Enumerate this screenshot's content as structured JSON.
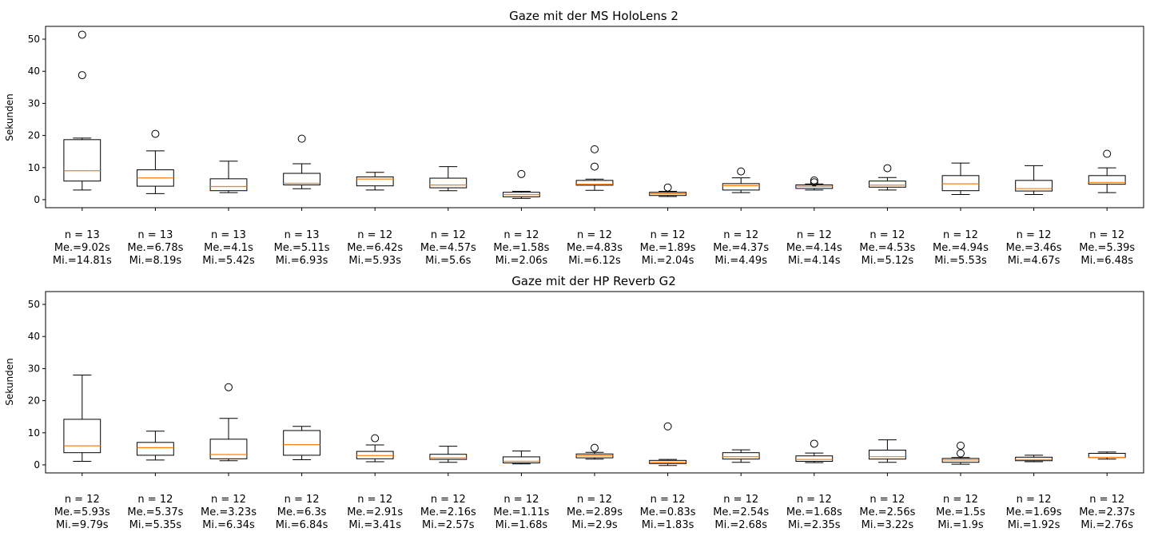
{
  "chart_data": [
    {
      "type": "boxplot",
      "title": "Gaze mit der MS HoloLens 2",
      "ylabel": "Sekunden",
      "xlabel": "",
      "ylim": [
        -2.5,
        54
      ],
      "yticks": [
        0,
        10,
        20,
        30,
        40,
        50
      ],
      "grid": false,
      "median_color": "#ff7f0e",
      "categories": [
        [
          "n = 13",
          "Me.=9.02s",
          "Mi.=14.81s"
        ],
        [
          "n = 13",
          "Me.=6.78s",
          "Mi.=8.19s"
        ],
        [
          "n = 13",
          "Me.=4.1s",
          "Mi.=5.42s"
        ],
        [
          "n = 13",
          "Me.=5.11s",
          "Mi.=6.93s"
        ],
        [
          "n = 12",
          "Me.=6.42s",
          "Mi.=5.93s"
        ],
        [
          "n = 12",
          "Me.=4.57s",
          "Mi.=5.6s"
        ],
        [
          "n = 12",
          "Me.=1.58s",
          "Mi.=2.06s"
        ],
        [
          "n = 12",
          "Me.=4.83s",
          "Mi.=6.12s"
        ],
        [
          "n = 12",
          "Me.=1.89s",
          "Mi.=2.04s"
        ],
        [
          "n = 12",
          "Me.=4.37s",
          "Mi.=4.49s"
        ],
        [
          "n = 12",
          "Me.=4.14s",
          "Mi.=4.14s"
        ],
        [
          "n = 12",
          "Me.=4.53s",
          "Mi.=5.12s"
        ],
        [
          "n = 12",
          "Me.=4.94s",
          "Mi.=5.53s"
        ],
        [
          "n = 12",
          "Me.=3.46s",
          "Mi.=4.67s"
        ],
        [
          "n = 12",
          "Me.=5.39s",
          "Mi.=6.48s"
        ]
      ],
      "boxes": [
        {
          "whisker_low": 3.0,
          "q1": 5.8,
          "median": 9.02,
          "q3": 18.7,
          "whisker_high": 19.2,
          "outliers": [
            38.8,
            51.4
          ]
        },
        {
          "whisker_low": 1.9,
          "q1": 4.2,
          "median": 6.78,
          "q3": 9.3,
          "whisker_high": 15.2,
          "outliers": [
            20.5
          ]
        },
        {
          "whisker_low": 2.2,
          "q1": 2.8,
          "median": 4.1,
          "q3": 6.5,
          "whisker_high": 12.0,
          "outliers": []
        },
        {
          "whisker_low": 3.4,
          "q1": 4.6,
          "median": 5.11,
          "q3": 8.2,
          "whisker_high": 11.2,
          "outliers": [
            19.0
          ]
        },
        {
          "whisker_low": 3.0,
          "q1": 4.3,
          "median": 6.42,
          "q3": 7.1,
          "whisker_high": 8.5,
          "outliers": []
        },
        {
          "whisker_low": 2.8,
          "q1": 3.7,
          "median": 4.57,
          "q3": 6.7,
          "whisker_high": 10.3,
          "outliers": []
        },
        {
          "whisker_low": 0.4,
          "q1": 0.9,
          "median": 1.58,
          "q3": 2.3,
          "whisker_high": 2.6,
          "outliers": [
            8.0
          ]
        },
        {
          "whisker_low": 2.9,
          "q1": 4.5,
          "median": 4.83,
          "q3": 6.0,
          "whisker_high": 6.4,
          "outliers": [
            10.3,
            15.7
          ]
        },
        {
          "whisker_low": 1.0,
          "q1": 1.3,
          "median": 1.89,
          "q3": 2.3,
          "whisker_high": 2.6,
          "outliers": [
            3.8
          ]
        },
        {
          "whisker_low": 2.2,
          "q1": 3.0,
          "median": 4.37,
          "q3": 5.0,
          "whisker_high": 6.8,
          "outliers": [
            8.8
          ]
        },
        {
          "whisker_low": 3.0,
          "q1": 3.5,
          "median": 4.14,
          "q3": 4.6,
          "whisker_high": 4.9,
          "outliers": [
            5.4,
            6.0
          ]
        },
        {
          "whisker_low": 3.0,
          "q1": 3.9,
          "median": 4.53,
          "q3": 5.8,
          "whisker_high": 6.9,
          "outliers": [
            9.8
          ]
        },
        {
          "whisker_low": 1.6,
          "q1": 2.8,
          "median": 4.94,
          "q3": 7.5,
          "whisker_high": 11.4,
          "outliers": []
        },
        {
          "whisker_low": 1.6,
          "q1": 2.7,
          "median": 3.46,
          "q3": 6.0,
          "whisker_high": 10.6,
          "outliers": []
        },
        {
          "whisker_low": 2.2,
          "q1": 4.8,
          "median": 5.39,
          "q3": 7.5,
          "whisker_high": 9.9,
          "outliers": [
            14.3
          ]
        }
      ]
    },
    {
      "type": "boxplot",
      "title": "Gaze mit der HP Reverb G2",
      "ylabel": "Sekunden",
      "xlabel": "",
      "ylim": [
        -2.5,
        54
      ],
      "yticks": [
        0,
        10,
        20,
        30,
        40,
        50
      ],
      "grid": false,
      "median_color": "#ff7f0e",
      "categories": [
        [
          "n = 12",
          "Me.=5.93s",
          "Mi.=9.79s"
        ],
        [
          "n = 12",
          "Me.=5.37s",
          "Mi.=5.35s"
        ],
        [
          "n = 12",
          "Me.=3.23s",
          "Mi.=6.34s"
        ],
        [
          "n = 12",
          "Me.=6.3s",
          "Mi.=6.84s"
        ],
        [
          "n = 12",
          "Me.=2.91s",
          "Mi.=3.41s"
        ],
        [
          "n = 12",
          "Me.=2.16s",
          "Mi.=2.57s"
        ],
        [
          "n = 12",
          "Me.=1.11s",
          "Mi.=1.68s"
        ],
        [
          "n = 12",
          "Me.=2.89s",
          "Mi.=2.9s"
        ],
        [
          "n = 12",
          "Me.=0.83s",
          "Mi.=1.83s"
        ],
        [
          "n = 12",
          "Me.=2.54s",
          "Mi.=2.68s"
        ],
        [
          "n = 12",
          "Me.=1.68s",
          "Mi.=2.35s"
        ],
        [
          "n = 12",
          "Me.=2.56s",
          "Mi.=3.22s"
        ],
        [
          "n = 12",
          "Me.=1.5s",
          "Mi.=1.9s"
        ],
        [
          "n = 12",
          "Me.=1.69s",
          "Mi.=1.92s"
        ],
        [
          "n = 12",
          "Me.=2.37s",
          "Mi.=2.76s"
        ]
      ],
      "boxes": [
        {
          "whisker_low": 1.1,
          "q1": 3.8,
          "median": 5.93,
          "q3": 14.2,
          "whisker_high": 28.0,
          "outliers": []
        },
        {
          "whisker_low": 1.5,
          "q1": 3.0,
          "median": 5.37,
          "q3": 7.0,
          "whisker_high": 10.5,
          "outliers": []
        },
        {
          "whisker_low": 1.3,
          "q1": 1.9,
          "median": 3.23,
          "q3": 8.0,
          "whisker_high": 14.5,
          "outliers": [
            24.2
          ]
        },
        {
          "whisker_low": 1.6,
          "q1": 3.0,
          "median": 6.3,
          "q3": 10.7,
          "whisker_high": 12.0,
          "outliers": []
        },
        {
          "whisker_low": 1.0,
          "q1": 1.9,
          "median": 2.91,
          "q3": 4.2,
          "whisker_high": 6.2,
          "outliers": [
            8.3
          ]
        },
        {
          "whisker_low": 0.8,
          "q1": 1.7,
          "median": 2.16,
          "q3": 3.3,
          "whisker_high": 5.8,
          "outliers": []
        },
        {
          "whisker_low": 0.3,
          "q1": 0.6,
          "median": 1.11,
          "q3": 2.5,
          "whisker_high": 4.3,
          "outliers": []
        },
        {
          "whisker_low": 1.8,
          "q1": 2.2,
          "median": 2.89,
          "q3": 3.4,
          "whisker_high": 3.9,
          "outliers": [
            5.3
          ]
        },
        {
          "whisker_low": -0.2,
          "q1": 0.4,
          "median": 0.83,
          "q3": 1.4,
          "whisker_high": 1.7,
          "outliers": [
            12.0
          ]
        },
        {
          "whisker_low": 0.8,
          "q1": 1.8,
          "median": 2.54,
          "q3": 3.8,
          "whisker_high": 4.7,
          "outliers": []
        },
        {
          "whisker_low": 0.7,
          "q1": 1.1,
          "median": 1.68,
          "q3": 2.8,
          "whisker_high": 3.7,
          "outliers": [
            6.6
          ]
        },
        {
          "whisker_low": 0.8,
          "q1": 1.8,
          "median": 2.56,
          "q3": 4.6,
          "whisker_high": 7.8,
          "outliers": []
        },
        {
          "whisker_low": 0.2,
          "q1": 0.8,
          "median": 1.5,
          "q3": 2.0,
          "whisker_high": 2.3,
          "outliers": [
            3.6,
            6.0
          ]
        },
        {
          "whisker_low": 1.0,
          "q1": 1.3,
          "median": 1.69,
          "q3": 2.4,
          "whisker_high": 3.0,
          "outliers": []
        },
        {
          "whisker_low": 1.8,
          "q1": 2.3,
          "median": 2.37,
          "q3": 3.6,
          "whisker_high": 4.0,
          "outliers": []
        }
      ]
    }
  ]
}
